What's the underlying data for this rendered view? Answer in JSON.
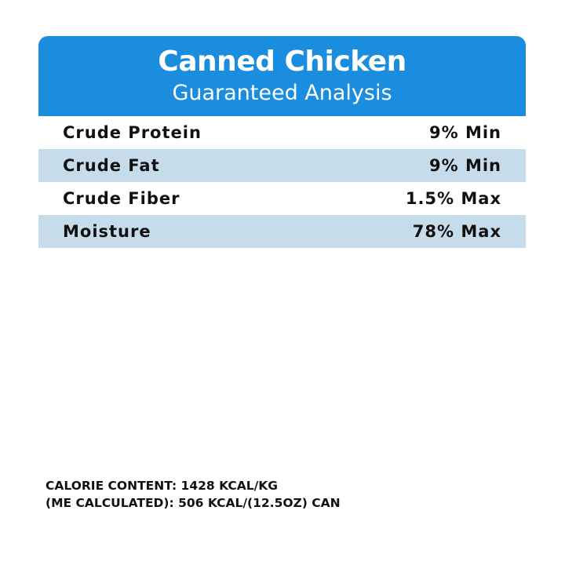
{
  "header": {
    "title": "Canned Chicken",
    "subtitle": "Guaranteed Analysis"
  },
  "rows": [
    {
      "label": "Crude Protein",
      "value": "9% Min"
    },
    {
      "label": "Crude Fat",
      "value": "9% Min"
    },
    {
      "label": "Crude Fiber",
      "value": "1.5% Max"
    },
    {
      "label": "Moisture",
      "value": "78% Max"
    }
  ],
  "calorie": {
    "line1": "CALORIE CONTENT: 1428 KCAL/KG",
    "line2": "(ME CALCULATED): 506 KCAL/(12.5OZ) CAN"
  },
  "colors": {
    "header": "#1a8ddf",
    "alt_row": "#c6dcea"
  }
}
